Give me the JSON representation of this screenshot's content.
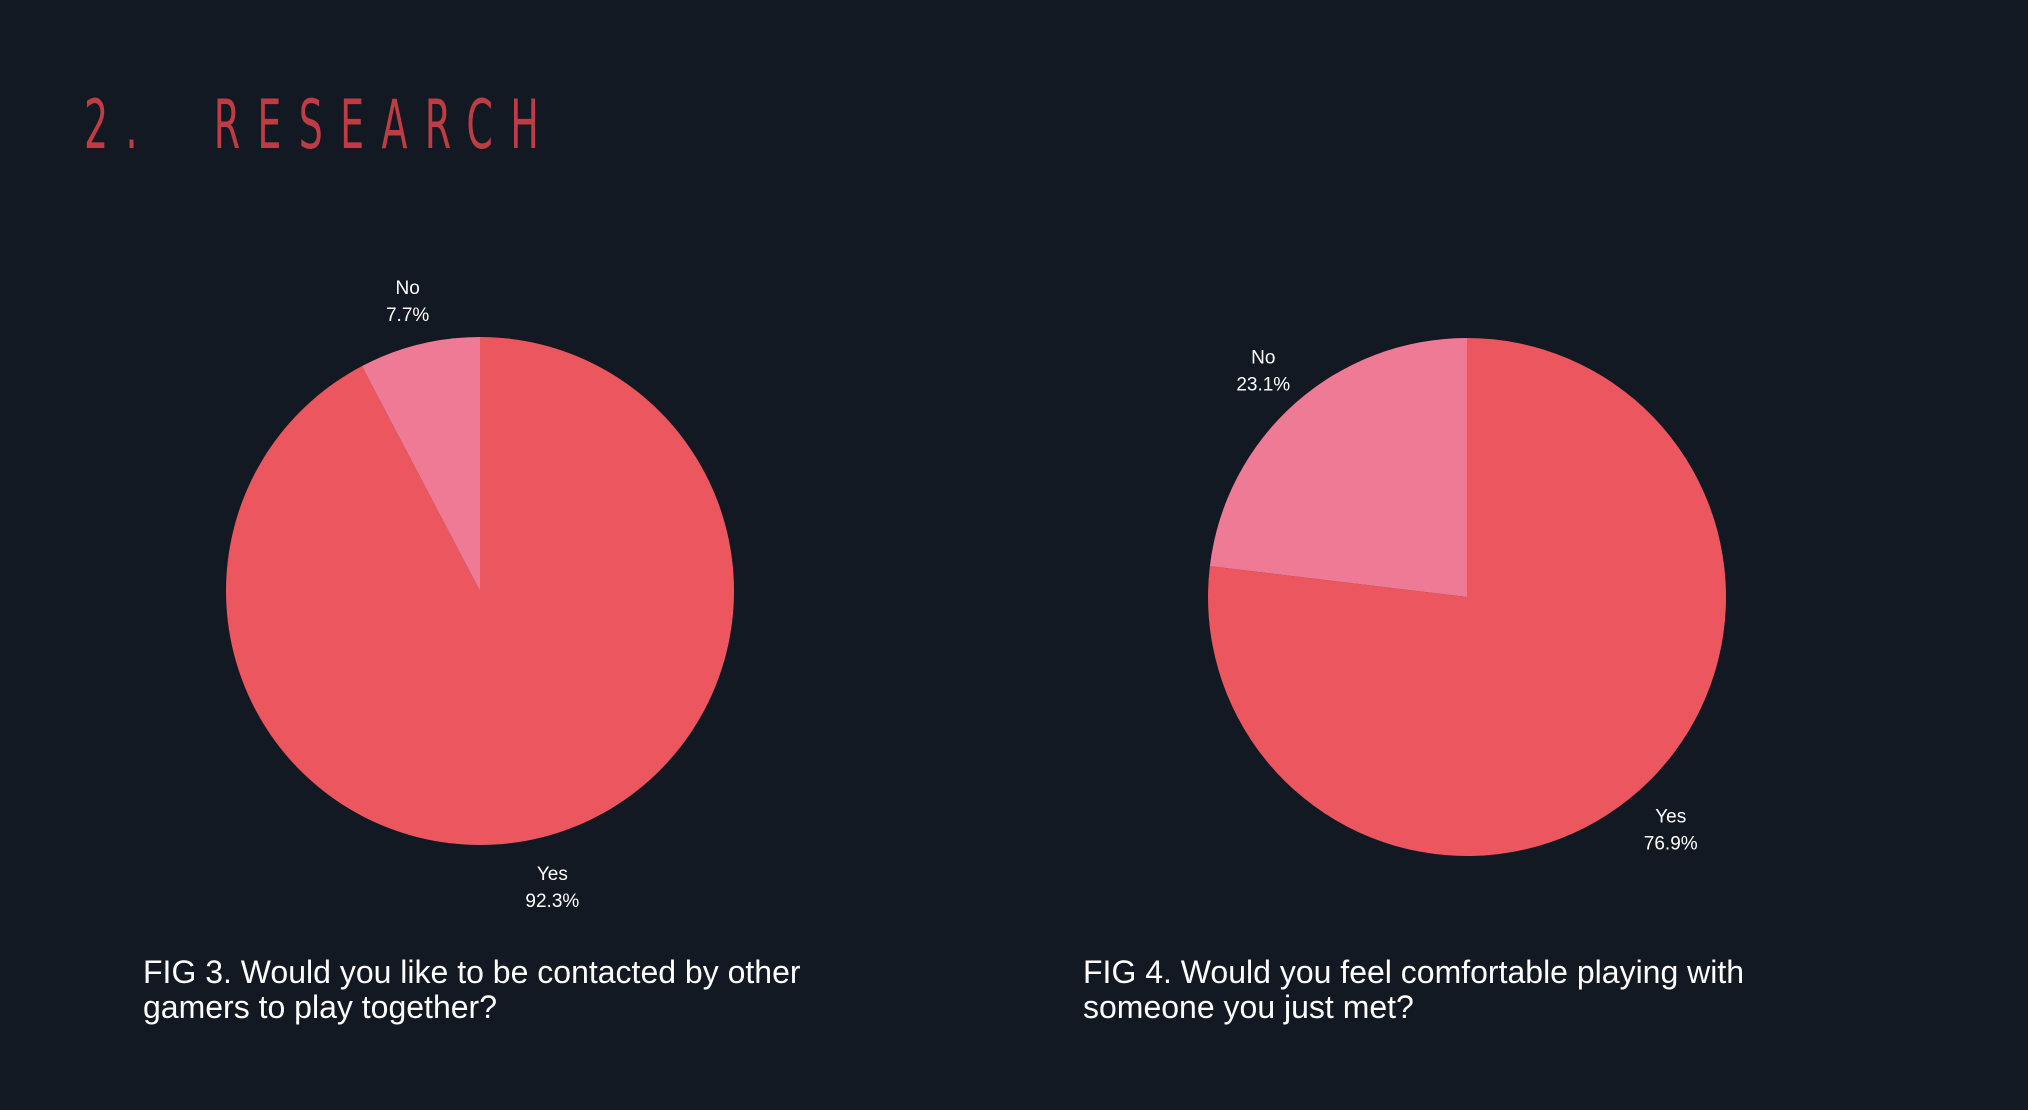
{
  "header": {
    "title": "2.  RESEARCH"
  },
  "colors": {
    "background": "#131922",
    "heading": "#c03c44",
    "yes_slice": "#ec565e",
    "no_slice": "#ee7a95"
  },
  "chart_data": [
    {
      "type": "pie",
      "caption": "FIG 3. Would you like to be contacted by other gamers to play together?",
      "slices": [
        {
          "label": "Yes",
          "percent_text": "92.3%",
          "value": 92.3,
          "color": "#ec565e"
        },
        {
          "label": "No",
          "percent_text": "7.7%",
          "value": 7.7,
          "color": "#ee7a95"
        }
      ]
    },
    {
      "type": "pie",
      "caption": "FIG 4. Would you feel comfortable playing with someone you just met?",
      "slices": [
        {
          "label": "Yes",
          "percent_text": "76.9%",
          "value": 76.9,
          "color": "#ec565e"
        },
        {
          "label": "No",
          "percent_text": "23.1%",
          "value": 23.1,
          "color": "#ee7a95"
        }
      ]
    }
  ]
}
